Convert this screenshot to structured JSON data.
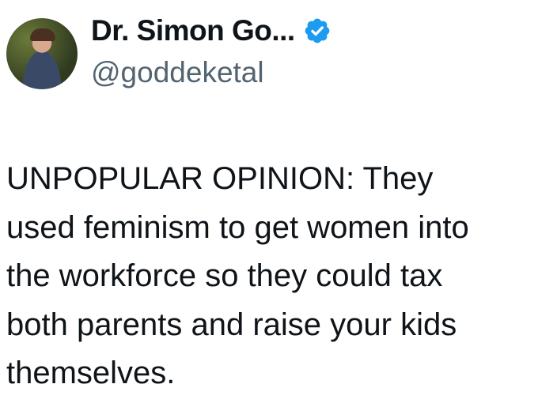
{
  "tweet": {
    "author_name": "Dr. Simon Go...",
    "handle": "@goddeketal",
    "verified": true,
    "verified_color": "#1d9bf0",
    "lines": [
      "UNPOPULAR OPINION: They",
      "used feminism to get women into",
      "the workforce so they could tax",
      "both parents and raise your kids",
      "themselves."
    ]
  }
}
